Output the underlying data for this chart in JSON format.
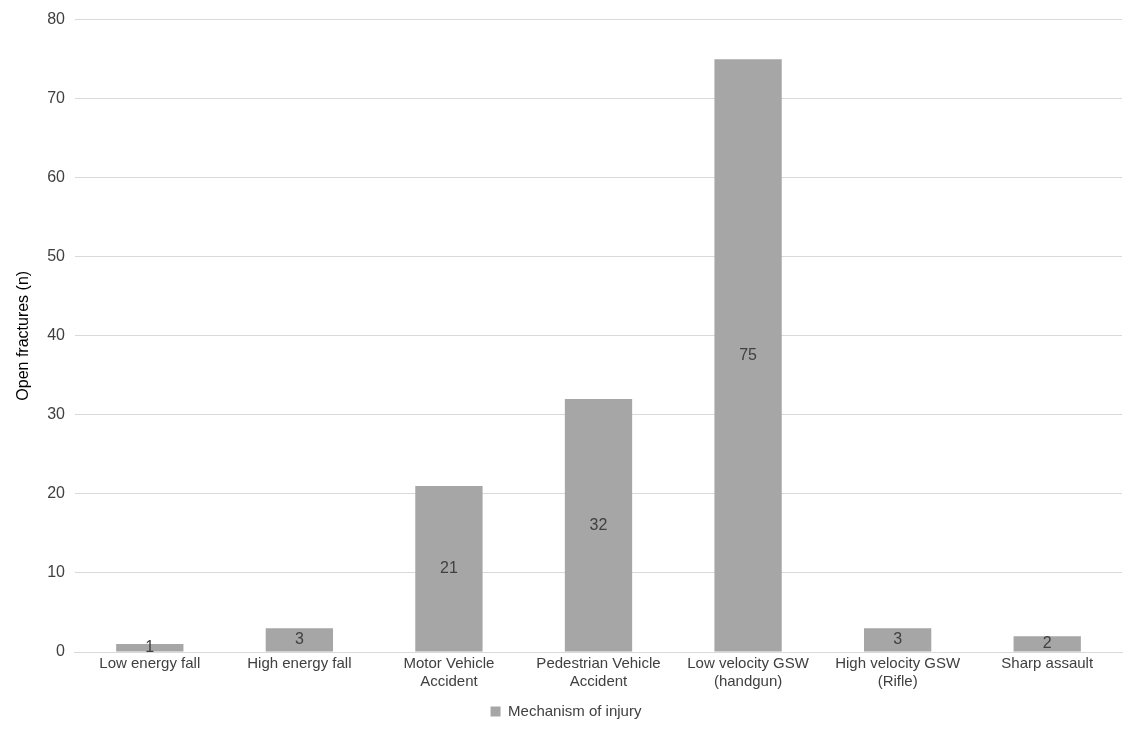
{
  "chart_data": {
    "type": "bar",
    "ylabel": "Open fractures (n)",
    "categories": [
      "Low energy fall",
      "High energy fall",
      "Motor Vehicle Accident",
      "Pedestrian Vehicle Accident",
      "Low velocity GSW (handgun)",
      "High velocity GSW (Rifle)",
      "Sharp assault"
    ],
    "series": [
      {
        "name": "Mechanism of injury",
        "color": "#a6a6a6",
        "values": [
          1,
          3,
          21,
          32,
          75,
          3,
          2
        ]
      }
    ],
    "ylim": [
      0,
      80
    ],
    "yticks": [
      0,
      10,
      20,
      30,
      40,
      50,
      60,
      70,
      80
    ],
    "grid": "y",
    "legend": "bottom",
    "data_labels": true
  }
}
